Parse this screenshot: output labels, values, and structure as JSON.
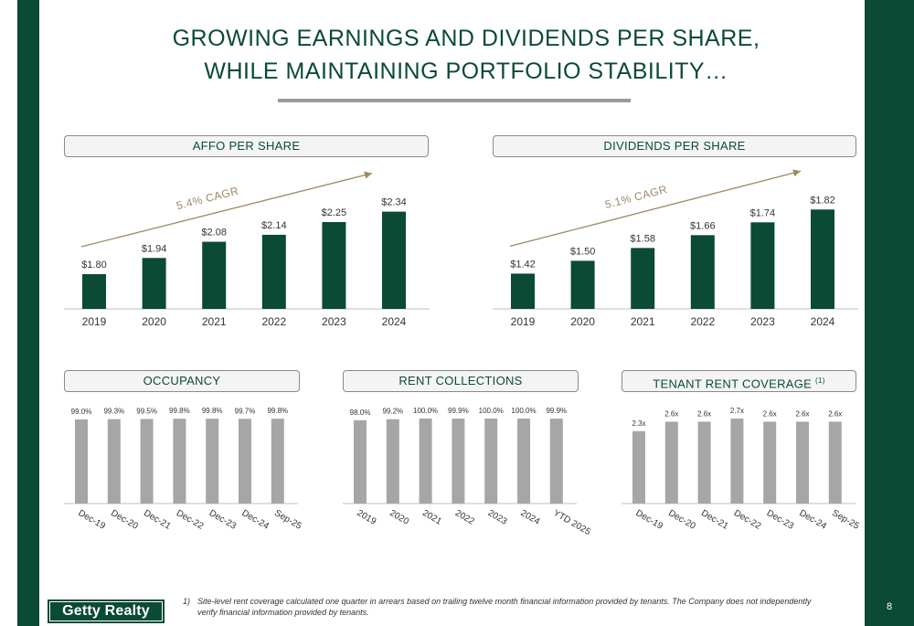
{
  "page": {
    "title_line1": "GROWING EARNINGS AND DIVIDENDS PER SHARE,",
    "title_line2": "WHILE MAINTAINING PORTFOLIO STABILITY…",
    "page_number": "8",
    "logo_text": "Getty Realty",
    "footnote_marker": "1)",
    "footnote_text": "Site-level rent coverage calculated one quarter in arrears based on trailing twelve month financial information provided by tenants.  The Company does not independently verify financial information provided by tenants.",
    "colors": {
      "brand_green": "#0b4a35",
      "bar_gray": "#a6a6a6",
      "accent_gold": "#9c8a63"
    }
  },
  "chart_data": [
    {
      "type": "bar",
      "title": "AFFO PER SHARE",
      "categories": [
        "2019",
        "2020",
        "2021",
        "2022",
        "2023",
        "2024"
      ],
      "values": [
        1.8,
        1.94,
        2.08,
        2.14,
        2.25,
        2.34
      ],
      "data_labels": [
        "$1.80",
        "$1.94",
        "$2.08",
        "$2.14",
        "$2.25",
        "$2.34"
      ],
      "annotation": "5.4% CAGR",
      "ylim": [
        1.5,
        2.4
      ]
    },
    {
      "type": "bar",
      "title": "DIVIDENDS PER SHARE",
      "categories": [
        "2019",
        "2020",
        "2021",
        "2022",
        "2023",
        "2024"
      ],
      "values": [
        1.42,
        1.5,
        1.58,
        1.66,
        1.74,
        1.82
      ],
      "data_labels": [
        "$1.42",
        "$1.50",
        "$1.58",
        "$1.66",
        "$1.74",
        "$1.82"
      ],
      "annotation": "5.1% CAGR",
      "ylim": [
        1.2,
        1.85
      ]
    },
    {
      "type": "bar",
      "title": "OCCUPANCY",
      "categories": [
        "Dec-19",
        "Dec-20",
        "Dec-21",
        "Dec-22",
        "Dec-23",
        "Dec-24",
        "Sep-25"
      ],
      "values": [
        99.0,
        99.3,
        99.5,
        99.8,
        99.8,
        99.7,
        99.8
      ],
      "data_labels": [
        "99.0%",
        "99.3%",
        "99.5%",
        "99.8%",
        "99.8%",
        "99.7%",
        "99.8%"
      ],
      "ylim": [
        0,
        100
      ]
    },
    {
      "type": "bar",
      "title": "RENT COLLECTIONS",
      "categories": [
        "2019",
        "2020",
        "2021",
        "2022",
        "2023",
        "2024",
        "YTD 2025"
      ],
      "values": [
        98.0,
        99.2,
        100.0,
        99.9,
        100.0,
        100.0,
        99.9
      ],
      "data_labels": [
        "98.0%",
        "99.2%",
        "100.0%",
        "99.9%",
        "100.0%",
        "100.0%",
        "99.9%"
      ],
      "ylim": [
        0,
        100
      ]
    },
    {
      "type": "bar",
      "title": "TENANT RENT COVERAGE",
      "title_superscript": "(1)",
      "categories": [
        "Dec-19",
        "Dec-20",
        "Dec-21",
        "Dec-22",
        "Dec-23",
        "Dec-24",
        "Sep-25"
      ],
      "values": [
        2.3,
        2.6,
        2.6,
        2.7,
        2.6,
        2.6,
        2.6
      ],
      "data_labels": [
        "2.3x",
        "2.6x",
        "2.6x",
        "2.7x",
        "2.6x",
        "2.6x",
        "2.6x"
      ],
      "ylim": [
        0,
        2.7
      ]
    }
  ]
}
